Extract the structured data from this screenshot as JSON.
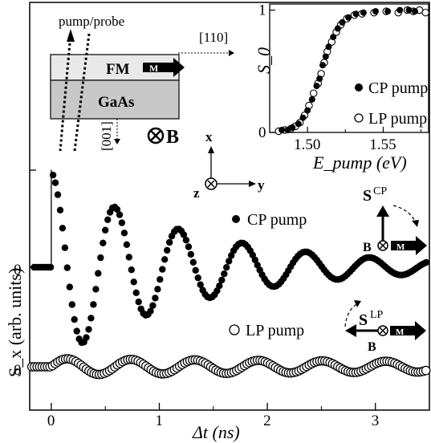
{
  "chart_data": [
    {
      "type": "line",
      "xlabel": "Δt (ns)",
      "ylabel": "S_x (arb. units)",
      "xlim": [
        -0.2,
        3.5
      ],
      "x_ticks": [
        "0",
        "1",
        "2",
        "3"
      ],
      "y_tick_labels": [
        "0",
        "0"
      ],
      "series": [
        {
          "name": "CP pump",
          "marker": "filled-circle",
          "baseline": 0,
          "amplitude": 1.0,
          "period_ns": 0.59,
          "decay_ns": 1.3,
          "onset_ns": 0.0
        },
        {
          "name": "LP pump",
          "marker": "open-circle",
          "fit_line": true,
          "baseline": 0,
          "amplitude": 0.35,
          "period_ns": 0.59,
          "decay_ns": 8.0,
          "onset_ns": 0.0
        }
      ]
    },
    {
      "type": "scatter",
      "xlabel": "E_pump (eV)",
      "ylabel": "S_0",
      "xlim": [
        1.475,
        1.58
      ],
      "ylim": [
        0,
        1.05
      ],
      "x_ticks": [
        "1.50",
        "1.55"
      ],
      "y_ticks": [
        "0",
        "1"
      ],
      "series": [
        {
          "name": "CP pump",
          "marker": "filled-circle",
          "x": [
            1.483,
            1.487,
            1.49,
            1.494,
            1.497,
            1.5,
            1.503,
            1.506,
            1.508,
            1.51,
            1.512,
            1.514,
            1.517,
            1.52,
            1.523,
            1.527,
            1.532,
            1.537,
            1.545,
            1.553,
            1.561,
            1.567,
            1.571
          ],
          "y": [
            0.02,
            0.02,
            0.04,
            0.07,
            0.12,
            0.18,
            0.27,
            0.38,
            0.44,
            0.55,
            0.62,
            0.7,
            0.78,
            0.85,
            0.9,
            0.94,
            0.97,
            0.98,
            0.99,
            0.99,
            1.0,
            1.0,
            0.99
          ]
        },
        {
          "name": "LP pump",
          "marker": "open-circle",
          "x": [
            1.481,
            1.485,
            1.489,
            1.492,
            1.495,
            1.498,
            1.501,
            1.504,
            1.507,
            1.509,
            1.511,
            1.513,
            1.516,
            1.519,
            1.522,
            1.526,
            1.531,
            1.536,
            1.544,
            1.552,
            1.56,
            1.566,
            1.57,
            1.574,
            1.578
          ],
          "y": [
            0.01,
            0.02,
            0.03,
            0.05,
            0.08,
            0.14,
            0.22,
            0.32,
            0.4,
            0.48,
            0.57,
            0.66,
            0.74,
            0.82,
            0.88,
            0.93,
            0.96,
            0.97,
            0.98,
            0.99,
            0.98,
            1.0,
            0.99,
            1.0,
            0.98
          ]
        }
      ]
    }
  ],
  "diagram": {
    "beam_label": "pump/probe",
    "dir_110": "[110]",
    "dir_001": "[001]",
    "layer_fm": "FM",
    "layer_gaas": "GaAs",
    "magnet_label": "M",
    "field_label": "B",
    "axis_x": "x",
    "axis_y": "y",
    "axis_z": "z"
  },
  "annotations": {
    "cp_vector": "S",
    "cp_vector_sup": "CP",
    "lp_vector": "S",
    "lp_vector_sup": "LP",
    "field_label": "B",
    "magnet_label": "M"
  }
}
